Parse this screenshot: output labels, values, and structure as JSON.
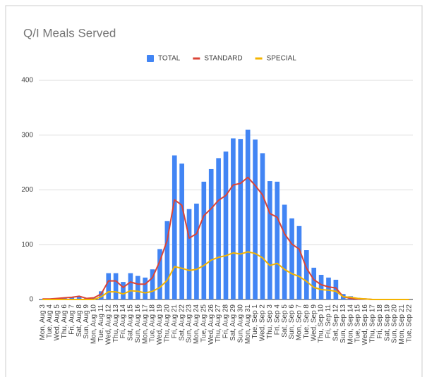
{
  "chart_data": {
    "type": "combo",
    "title": "Q/I Meals Served",
    "categories": [
      "Mon, Aug 3",
      "Tue, Aug 4",
      "Wed, Aug 5",
      "Thu, Aug 6",
      "Fri, Aug 7",
      "Sat, Aug 8",
      "Sun, Aug 9",
      "Mon, Aug 10",
      "Tue, Aug 11",
      "Wed, Aug 12",
      "Thu, Aug 13",
      "Fri, Aug 14",
      "Sat, Aug 15",
      "Sun, Aug 16",
      "Mon, Aug 17",
      "Tue, Aug 18",
      "Wed, Aug 19",
      "Thu, Aug 20",
      "Fri, Aug 21",
      "Sat, Aug 22",
      "Sun, Aug 23",
      "Mon, Aug 24",
      "Tue, Aug 25",
      "Wed, Aug 26",
      "Thu, Aug 27",
      "Fri, Aug 28",
      "Sat, Aug 29",
      "Sun, Aug 30",
      "Mon, Aug 31",
      "Tue, Sep 1",
      "Wed, Sep 2",
      "Thu, Sep 3",
      "Fri, Sep 4",
      "Sat, Sep 5",
      "Sun, Sep 6",
      "Mon, Sep 7",
      "Tue, Sep 8",
      "Wed, Sep 9",
      "Thu, Sep 10",
      "Fri, Sep 11",
      "Sat, Sep 12",
      "Sun, Sep 13",
      "Mon, Sep 14",
      "Tue, Sep 15",
      "Wed, Sep 16",
      "Thu, Sep 17",
      "Fri, Sep 18",
      "Sat, Sep 19",
      "Sun, Sep 20",
      "Mon, Sep 21",
      "Tue, Sep 22"
    ],
    "series": [
      {
        "name": "TOTAL",
        "type": "bar",
        "color": "#4285f4",
        "values": [
          1,
          1,
          2,
          3,
          4,
          6,
          2,
          3,
          15,
          48,
          48,
          32,
          48,
          43,
          40,
          55,
          92,
          143,
          263,
          248,
          165,
          175,
          215,
          238,
          258,
          270,
          294,
          293,
          310,
          292,
          267,
          216,
          215,
          173,
          148,
          134,
          90,
          58,
          45,
          40,
          36,
          10,
          6,
          3,
          2,
          1,
          0,
          0,
          0,
          0,
          0
        ]
      },
      {
        "name": "STANDARD",
        "type": "line",
        "color": "#db4437",
        "values": [
          1,
          1,
          2,
          3,
          4,
          6,
          2,
          3,
          10,
          34,
          34,
          22,
          32,
          28,
          28,
          40,
          70,
          108,
          182,
          172,
          112,
          120,
          153,
          166,
          181,
          190,
          209,
          212,
          223,
          208,
          191,
          157,
          150,
          120,
          101,
          92,
          57,
          36,
          27,
          23,
          21,
          5,
          2,
          1,
          1,
          0,
          0,
          0,
          0,
          0,
          0
        ]
      },
      {
        "name": "SPECIAL",
        "type": "line",
        "color": "#f4b400",
        "values": [
          0,
          0,
          0,
          0,
          0,
          0,
          0,
          0,
          5,
          14,
          14,
          10,
          16,
          15,
          12,
          15,
          22,
          35,
          60,
          57,
          53,
          55,
          62,
          72,
          77,
          80,
          85,
          83,
          87,
          84,
          76,
          62,
          66,
          55,
          47,
          42,
          33,
          22,
          18,
          17,
          15,
          5,
          4,
          2,
          1,
          0,
          0,
          0,
          0,
          0,
          0
        ]
      }
    ],
    "ylim": [
      0,
      400
    ],
    "yticks": [
      0,
      100,
      200,
      300,
      400
    ],
    "grid": true,
    "legend": "top"
  }
}
